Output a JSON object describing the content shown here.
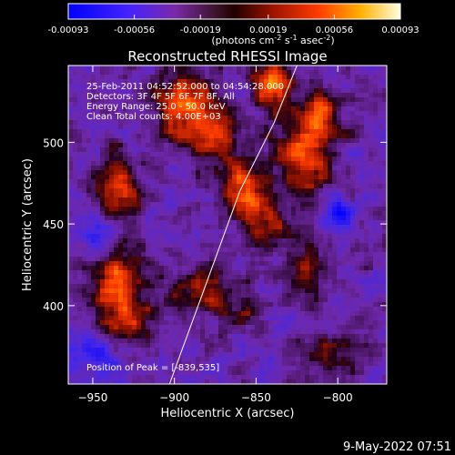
{
  "chart_data": {
    "type": "heatmap",
    "title": "Reconstructed RHESSI Image",
    "xlabel": "Heliocentric X (arcsec)",
    "ylabel": "Heliocentric Y (arcsec)",
    "xlim": [
      -965,
      -770
    ],
    "ylim": [
      352,
      547
    ],
    "x_ticks": [
      -950,
      -900,
      -850,
      -800
    ],
    "y_ticks": [
      400,
      450,
      500
    ],
    "colorbar": {
      "range": [
        -0.00093,
        0.00093
      ],
      "ticks": [
        -0.00093,
        -0.00056,
        -0.00019,
        0.00019,
        0.00056,
        0.00093
      ],
      "tick_labels": [
        "-0.00093",
        "-0.00056",
        "-0.00019",
        "0.00019",
        "0.00056",
        "0.00093"
      ],
      "units_label": "(photons cm",
      "units_exp1": "-2",
      "units_mid": " s",
      "units_exp2": "-1",
      "units_mid2": " asec",
      "units_exp3": "-2",
      "units_close": ")"
    },
    "info_lines": [
      "25-Feb-2011 04:52:52.000 to 04:54:28.000",
      "Detectors: 3F 4F 5F 6F 7F 8F, All",
      "Energy Range: 25.0 - 50.0 keV",
      "Clean     Total counts: 4.00E+03"
    ],
    "peak_label": "Position of Peak = [-839,535]",
    "limb_curve": [
      [
        -903,
        352
      ],
      [
        -880,
        415
      ],
      [
        -860,
        470
      ],
      [
        -839,
        512
      ],
      [
        -825,
        547
      ]
    ],
    "bright_regions": [
      {
        "x": -935,
        "y": 470,
        "sx": 10,
        "sy": 14,
        "amp": 0.75
      },
      {
        "x": -935,
        "y": 415,
        "sx": 12,
        "sy": 16,
        "amp": 0.75
      },
      {
        "x": -930,
        "y": 390,
        "sx": 12,
        "sy": 8,
        "amp": 0.55
      },
      {
        "x": -895,
        "y": 525,
        "sx": 12,
        "sy": 14,
        "amp": 0.85
      },
      {
        "x": -875,
        "y": 505,
        "sx": 10,
        "sy": 12,
        "amp": 0.7
      },
      {
        "x": -858,
        "y": 470,
        "sx": 10,
        "sy": 14,
        "amp": 0.75
      },
      {
        "x": -840,
        "y": 535,
        "sx": 8,
        "sy": 10,
        "amp": 0.95
      },
      {
        "x": -822,
        "y": 490,
        "sx": 12,
        "sy": 16,
        "amp": 0.65
      },
      {
        "x": -812,
        "y": 515,
        "sx": 10,
        "sy": 12,
        "amp": 0.7
      },
      {
        "x": -885,
        "y": 410,
        "sx": 12,
        "sy": 10,
        "amp": 0.55
      },
      {
        "x": -818,
        "y": 425,
        "sx": 8,
        "sy": 12,
        "amp": 0.5
      },
      {
        "x": -860,
        "y": 395,
        "sx": 10,
        "sy": 8,
        "amp": 0.35
      },
      {
        "x": -805,
        "y": 372,
        "sx": 14,
        "sy": 8,
        "amp": 0.45
      },
      {
        "x": -842,
        "y": 450,
        "sx": 8,
        "sy": 10,
        "amp": 0.5
      },
      {
        "x": -800,
        "y": 455,
        "sx": 8,
        "sy": 8,
        "amp": -0.5
      },
      {
        "x": -945,
        "y": 445,
        "sx": 10,
        "sy": 10,
        "amp": -0.4
      },
      {
        "x": -950,
        "y": 370,
        "sx": 12,
        "sy": 10,
        "amp": -0.4
      }
    ]
  },
  "footer": {
    "timestamp": "9-May-2022 07:51"
  }
}
